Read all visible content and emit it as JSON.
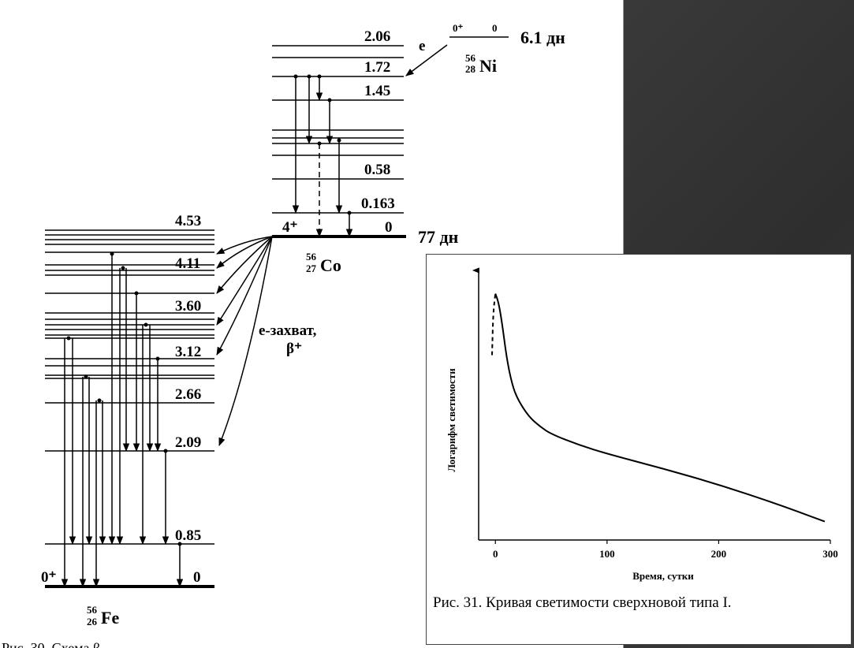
{
  "decay_scheme": {
    "ni": {
      "spin": "0⁺",
      "energy": "0",
      "half_life": "6.1 дн",
      "mass_number": "56",
      "atomic_number": "28",
      "symbol": "Ni",
      "capture_label": "e"
    },
    "co": {
      "level_labels": [
        "2.06",
        "1.72",
        "1.45",
        "0.58",
        "0.163",
        "0"
      ],
      "spin": "4⁺",
      "half_life": "77 дн",
      "mass_number": "56",
      "atomic_number": "27",
      "symbol": "Co"
    },
    "fe": {
      "level_labels": [
        "4.53",
        "4.11",
        "3.60",
        "3.12",
        "2.66",
        "2.09",
        "0.85",
        "0"
      ],
      "spin": "0⁺",
      "mass_number": "56",
      "atomic_number": "26",
      "symbol": "Fe"
    },
    "capture_label_1": "e-захват,",
    "capture_label_2": "β⁺",
    "bottom_fragment": "Рис. 30. Схема β"
  },
  "chart_data": {
    "type": "line",
    "title": "",
    "xlabel": "Время, сутки",
    "ylabel": "Логарифм светимости",
    "xlim": [
      -15,
      300
    ],
    "x_ticks": [
      "0",
      "100",
      "200",
      "300"
    ],
    "y_scale": "relative (no ticks)",
    "grid": false,
    "series": [
      {
        "style": "solid",
        "x": [
          0,
          3,
          6,
          10,
          15,
          20,
          30,
          40,
          50,
          75,
          100,
          150,
          200,
          250,
          295
        ],
        "y": [
          10.0,
          9.6,
          8.8,
          7.4,
          6.3,
          5.7,
          5.0,
          4.6,
          4.3,
          3.85,
          3.5,
          2.9,
          2.25,
          1.5,
          0.75
        ]
      },
      {
        "style": "dashed",
        "x": [
          -3,
          -2,
          0
        ],
        "y": [
          7.5,
          9.2,
          10.0
        ]
      }
    ]
  },
  "inset": {
    "caption": "Рис. 31. Кривая светимости сверхновой типа I."
  }
}
